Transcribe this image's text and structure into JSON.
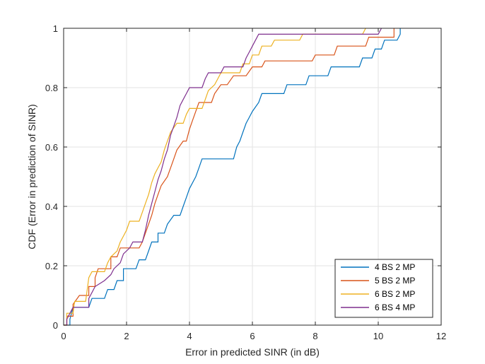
{
  "chart_data": {
    "type": "line",
    "subtype": "step-cdf",
    "title": "",
    "xlabel": "Error in predicted SINR (in dB)",
    "ylabel": "CDF (Error in prediction of SINR)",
    "xlim": [
      0,
      12
    ],
    "ylim": [
      0,
      1
    ],
    "xticks": [
      0,
      2,
      4,
      6,
      8,
      10,
      12
    ],
    "xtick_labels": [
      "0",
      "2",
      "4",
      "6",
      "8",
      "10",
      "12"
    ],
    "yticks": [
      0,
      0.2,
      0.4,
      0.6,
      0.8,
      1
    ],
    "ytick_labels": [
      "0",
      "0.2",
      "0.4",
      "0.6",
      "0.8",
      "1"
    ],
    "grid": true,
    "legend_position": "bottom-right",
    "series": [
      {
        "name": "4 BS 2 MP",
        "color": "#0072BD",
        "points": [
          [
            0,
            0
          ],
          [
            0.2,
            0
          ],
          [
            0.2,
            0.02
          ],
          [
            0.25,
            0.04
          ],
          [
            0.3,
            0.06
          ],
          [
            0.8,
            0.06
          ],
          [
            0.9,
            0.09
          ],
          [
            1.3,
            0.09
          ],
          [
            1.4,
            0.12
          ],
          [
            1.6,
            0.12
          ],
          [
            1.7,
            0.15
          ],
          [
            1.9,
            0.15
          ],
          [
            1.9,
            0.19
          ],
          [
            2.3,
            0.19
          ],
          [
            2.4,
            0.22
          ],
          [
            2.6,
            0.22
          ],
          [
            2.7,
            0.25
          ],
          [
            2.8,
            0.28
          ],
          [
            3.0,
            0.28
          ],
          [
            3.0,
            0.31
          ],
          [
            3.2,
            0.31
          ],
          [
            3.3,
            0.34
          ],
          [
            3.5,
            0.37
          ],
          [
            3.7,
            0.37
          ],
          [
            3.8,
            0.4
          ],
          [
            3.9,
            0.43
          ],
          [
            4.0,
            0.46
          ],
          [
            4.2,
            0.5
          ],
          [
            4.3,
            0.53
          ],
          [
            4.4,
            0.56
          ],
          [
            5.4,
            0.56
          ],
          [
            5.5,
            0.6
          ],
          [
            5.6,
            0.62
          ],
          [
            5.7,
            0.65
          ],
          [
            5.8,
            0.68
          ],
          [
            5.9,
            0.7
          ],
          [
            6.0,
            0.72
          ],
          [
            6.2,
            0.75
          ],
          [
            6.3,
            0.78
          ],
          [
            7.0,
            0.78
          ],
          [
            7.1,
            0.81
          ],
          [
            7.7,
            0.81
          ],
          [
            7.8,
            0.84
          ],
          [
            8.4,
            0.84
          ],
          [
            8.5,
            0.87
          ],
          [
            9.4,
            0.87
          ],
          [
            9.5,
            0.9
          ],
          [
            9.8,
            0.9
          ],
          [
            9.9,
            0.93
          ],
          [
            10.1,
            0.93
          ],
          [
            10.2,
            0.96
          ],
          [
            10.6,
            0.96
          ],
          [
            10.7,
            0.98
          ],
          [
            10.7,
            1.0
          ]
        ]
      },
      {
        "name": "5 BS 2 MP",
        "color": "#D95319",
        "points": [
          [
            0,
            0
          ],
          [
            0.1,
            0
          ],
          [
            0.1,
            0.03
          ],
          [
            0.3,
            0.03
          ],
          [
            0.3,
            0.07
          ],
          [
            0.5,
            0.1
          ],
          [
            0.8,
            0.1
          ],
          [
            0.8,
            0.13
          ],
          [
            1.0,
            0.13
          ],
          [
            1.0,
            0.16
          ],
          [
            1.1,
            0.19
          ],
          [
            1.5,
            0.19
          ],
          [
            1.5,
            0.23
          ],
          [
            1.7,
            0.23
          ],
          [
            1.8,
            0.26
          ],
          [
            2.4,
            0.26
          ],
          [
            2.5,
            0.28
          ],
          [
            2.6,
            0.31
          ],
          [
            2.7,
            0.34
          ],
          [
            2.8,
            0.37
          ],
          [
            2.9,
            0.41
          ],
          [
            3.0,
            0.44
          ],
          [
            3.1,
            0.47
          ],
          [
            3.3,
            0.5
          ],
          [
            3.4,
            0.53
          ],
          [
            3.5,
            0.56
          ],
          [
            3.6,
            0.59
          ],
          [
            3.8,
            0.62
          ],
          [
            3.9,
            0.62
          ],
          [
            4.0,
            0.66
          ],
          [
            4.1,
            0.69
          ],
          [
            4.2,
            0.72
          ],
          [
            4.3,
            0.75
          ],
          [
            4.7,
            0.75
          ],
          [
            4.8,
            0.78
          ],
          [
            5.0,
            0.81
          ],
          [
            5.2,
            0.81
          ],
          [
            5.4,
            0.84
          ],
          [
            5.8,
            0.84
          ],
          [
            6.0,
            0.87
          ],
          [
            6.3,
            0.87
          ],
          [
            6.4,
            0.89
          ],
          [
            7.9,
            0.89
          ],
          [
            8.0,
            0.91
          ],
          [
            8.6,
            0.91
          ],
          [
            8.7,
            0.94
          ],
          [
            9.6,
            0.94
          ],
          [
            9.7,
            0.97
          ],
          [
            10.5,
            0.97
          ],
          [
            10.5,
            1.0
          ]
        ]
      },
      {
        "name": "6 BS 2 MP",
        "color": "#EDB120",
        "points": [
          [
            0,
            0
          ],
          [
            0.1,
            0
          ],
          [
            0.1,
            0.04
          ],
          [
            0.3,
            0.04
          ],
          [
            0.35,
            0.08
          ],
          [
            0.7,
            0.08
          ],
          [
            0.75,
            0.12
          ],
          [
            0.8,
            0.16
          ],
          [
            0.9,
            0.18
          ],
          [
            1.3,
            0.18
          ],
          [
            1.4,
            0.21
          ],
          [
            1.5,
            0.23
          ],
          [
            1.7,
            0.25
          ],
          [
            1.8,
            0.28
          ],
          [
            1.9,
            0.3
          ],
          [
            2.0,
            0.32
          ],
          [
            2.1,
            0.35
          ],
          [
            2.4,
            0.35
          ],
          [
            2.5,
            0.38
          ],
          [
            2.6,
            0.41
          ],
          [
            2.7,
            0.44
          ],
          [
            2.8,
            0.48
          ],
          [
            2.9,
            0.51
          ],
          [
            3.0,
            0.53
          ],
          [
            3.1,
            0.55
          ],
          [
            3.2,
            0.59
          ],
          [
            3.3,
            0.62
          ],
          [
            3.4,
            0.65
          ],
          [
            3.6,
            0.68
          ],
          [
            3.8,
            0.68
          ],
          [
            3.9,
            0.71
          ],
          [
            4.0,
            0.73
          ],
          [
            4.4,
            0.73
          ],
          [
            4.5,
            0.76
          ],
          [
            4.6,
            0.79
          ],
          [
            4.8,
            0.81
          ],
          [
            4.9,
            0.83
          ],
          [
            5.0,
            0.85
          ],
          [
            5.6,
            0.85
          ],
          [
            5.7,
            0.88
          ],
          [
            5.9,
            0.88
          ],
          [
            6.0,
            0.91
          ],
          [
            6.2,
            0.91
          ],
          [
            6.3,
            0.94
          ],
          [
            6.6,
            0.94
          ],
          [
            6.7,
            0.96
          ],
          [
            7.5,
            0.96
          ],
          [
            7.6,
            0.98
          ],
          [
            9.5,
            0.98
          ],
          [
            9.6,
            1.0
          ]
        ]
      },
      {
        "name": "6 BS 4 MP",
        "color": "#7E2F8E",
        "points": [
          [
            0,
            0
          ],
          [
            0.1,
            0
          ],
          [
            0.1,
            0.02
          ],
          [
            0.2,
            0.04
          ],
          [
            0.3,
            0.06
          ],
          [
            0.8,
            0.06
          ],
          [
            0.8,
            0.09
          ],
          [
            0.9,
            0.11
          ],
          [
            1.0,
            0.13
          ],
          [
            1.3,
            0.15
          ],
          [
            1.5,
            0.17
          ],
          [
            1.6,
            0.19
          ],
          [
            1.8,
            0.21
          ],
          [
            1.9,
            0.24
          ],
          [
            2.1,
            0.26
          ],
          [
            2.2,
            0.28
          ],
          [
            2.5,
            0.28
          ],
          [
            2.6,
            0.32
          ],
          [
            2.7,
            0.37
          ],
          [
            2.8,
            0.41
          ],
          [
            2.9,
            0.45
          ],
          [
            3.0,
            0.49
          ],
          [
            3.1,
            0.52
          ],
          [
            3.2,
            0.56
          ],
          [
            3.3,
            0.59
          ],
          [
            3.4,
            0.64
          ],
          [
            3.5,
            0.67
          ],
          [
            3.6,
            0.7
          ],
          [
            3.7,
            0.74
          ],
          [
            3.8,
            0.76
          ],
          [
            3.9,
            0.78
          ],
          [
            4.0,
            0.8
          ],
          [
            4.4,
            0.8
          ],
          [
            4.5,
            0.83
          ],
          [
            4.6,
            0.85
          ],
          [
            5.0,
            0.85
          ],
          [
            5.1,
            0.87
          ],
          [
            5.7,
            0.87
          ],
          [
            5.8,
            0.9
          ],
          [
            5.9,
            0.92
          ],
          [
            6.0,
            0.94
          ],
          [
            6.1,
            0.96
          ],
          [
            6.2,
            0.98
          ],
          [
            10.0,
            0.98
          ],
          [
            10.1,
            1.0
          ]
        ]
      }
    ]
  }
}
